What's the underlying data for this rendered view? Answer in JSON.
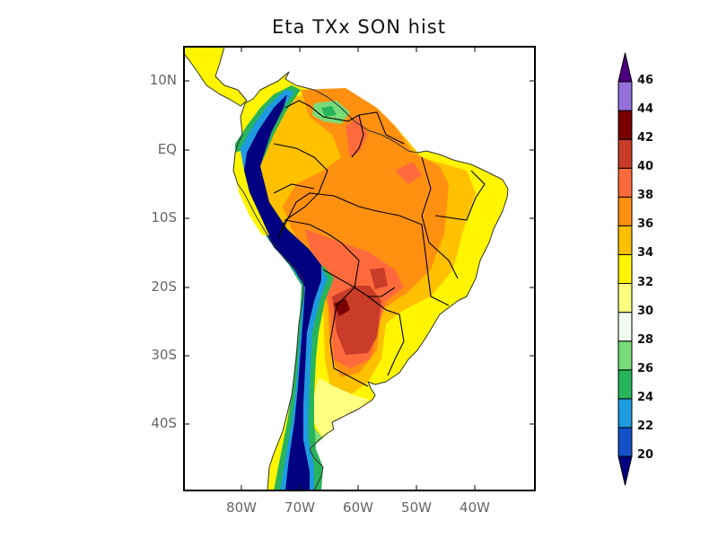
{
  "title": "Eta TXx SON hist",
  "lat_labels": [
    "10N",
    "EQ",
    "10S",
    "20S",
    "30S",
    "40S"
  ],
  "lon_labels": [
    "80W",
    "70W",
    "60W",
    "50W",
    "40W"
  ],
  "extent": {
    "lon": [
      "90W",
      "30W"
    ],
    "lat": [
      "15N",
      "50S"
    ]
  },
  "colorbar": {
    "levels": [
      "20",
      "22",
      "24",
      "26",
      "28",
      "30",
      "32",
      "34",
      "36",
      "38",
      "40",
      "42",
      "44",
      "46"
    ],
    "colors": [
      "#000080",
      "#1450c8",
      "#1e9be0",
      "#28b45a",
      "#78dc78",
      "#f0faf0",
      "#ffff80",
      "#fff500",
      "#ffc000",
      "#ff9010",
      "#ff6a3c",
      "#c83c28",
      "#780000",
      "#9370db",
      "#4b0082"
    ]
  }
}
